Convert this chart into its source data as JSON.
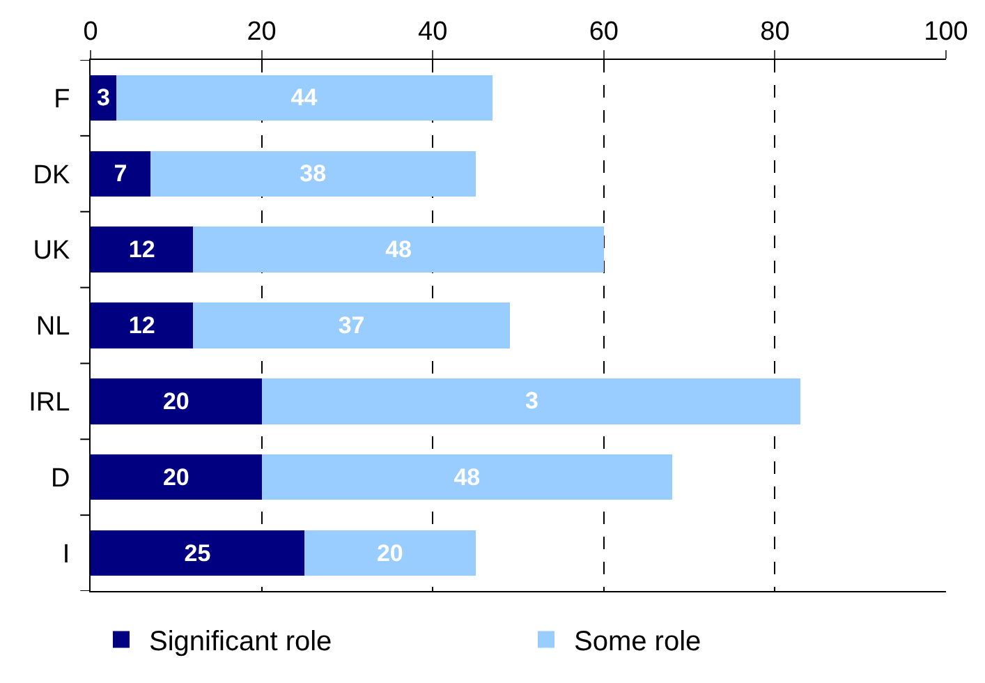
{
  "chart_data": {
    "type": "bar",
    "orientation": "horizontal",
    "stacked": true,
    "categories": [
      "F",
      "DK",
      "UK",
      "NL",
      "IRL",
      "D",
      "I"
    ],
    "series": [
      {
        "name": "Significant role",
        "color": "#000080",
        "values": [
          3,
          7,
          12,
          12,
          20,
          20,
          25
        ],
        "value_labels": [
          "3",
          "7",
          "12",
          "12",
          "20",
          "20",
          "25"
        ]
      },
      {
        "name": "Some role",
        "color": "#99ccff",
        "values": [
          44,
          38,
          48,
          37,
          63,
          48,
          20
        ],
        "value_labels": [
          "44",
          "38",
          "48",
          "37",
          null,
          "48",
          "20"
        ]
      }
    ],
    "annotations": [
      "3"
    ],
    "xlim": [
      0,
      100
    ],
    "xticks": [
      0,
      20,
      40,
      60,
      80,
      100
    ],
    "grid": "x",
    "legend": "bottom"
  }
}
